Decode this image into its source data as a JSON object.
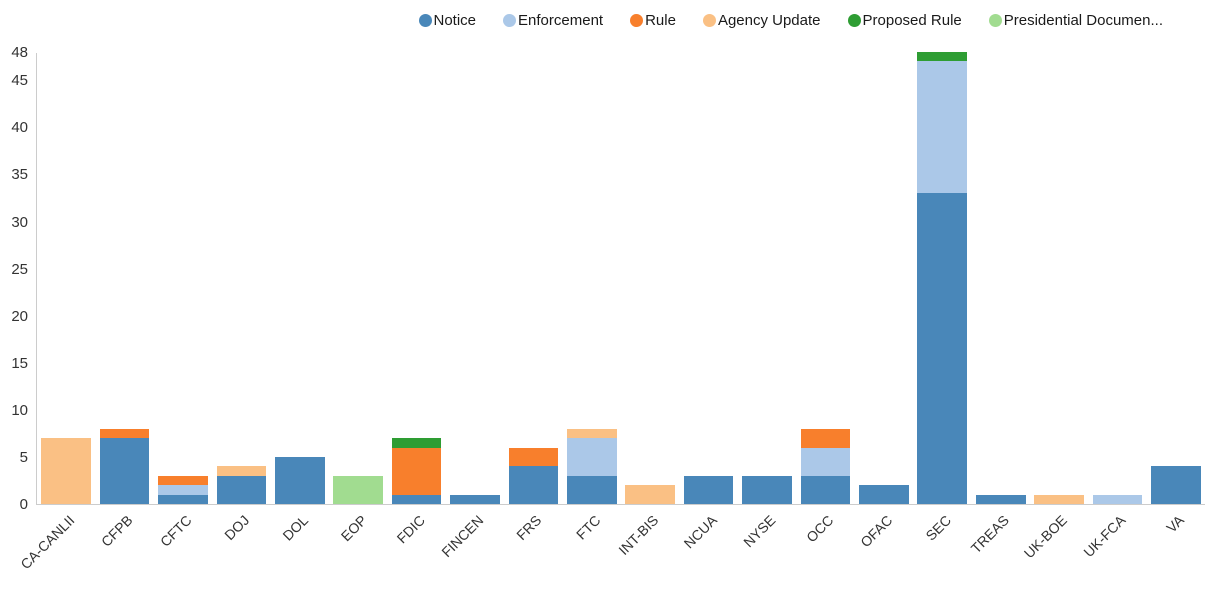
{
  "page": {
    "background": "#ffffff"
  },
  "chart_data": {
    "type": "bar",
    "stacked": true,
    "title": "",
    "xlabel": "",
    "ylabel": "",
    "ylim": [
      0,
      48
    ],
    "y_ticks": [
      0,
      5,
      10,
      15,
      20,
      25,
      30,
      35,
      40,
      45,
      48
    ],
    "grid": false,
    "legend_position": "top-right",
    "legend_labels": [
      "Notice",
      "Enforcement",
      "Rule",
      "Agency Update",
      "Proposed Rule",
      "Presidential Documen..."
    ],
    "categories": [
      "CA-CANLII",
      "CFPB",
      "CFTC",
      "DOJ",
      "DOL",
      "EOP",
      "FDIC",
      "FINCEN",
      "FRS",
      "FTC",
      "INT-BIS",
      "NCUA",
      "NYSE",
      "OCC",
      "OFAC",
      "SEC",
      "TREAS",
      "UK-BOE",
      "UK-FCA",
      "VA"
    ],
    "series": [
      {
        "name": "Notice",
        "color": "#4987b9",
        "values": [
          0,
          7,
          1,
          3,
          5,
          0,
          1,
          1,
          4,
          3,
          0,
          3,
          3,
          3,
          2,
          33,
          1,
          0,
          0,
          4
        ]
      },
      {
        "name": "Enforcement",
        "color": "#abc8e8",
        "values": [
          0,
          0,
          1,
          0,
          0,
          0,
          0,
          0,
          0,
          4,
          0,
          0,
          0,
          3,
          0,
          14,
          0,
          0,
          1,
          0
        ]
      },
      {
        "name": "Rule",
        "color": "#f87f2c",
        "values": [
          0,
          1,
          1,
          0,
          0,
          0,
          5,
          0,
          2,
          0,
          0,
          0,
          0,
          2,
          0,
          0,
          0,
          0,
          0,
          0
        ]
      },
      {
        "name": "Agency Update",
        "color": "#fac084",
        "values": [
          7,
          0,
          0,
          1,
          0,
          0,
          0,
          0,
          0,
          1,
          2,
          0,
          0,
          0,
          0,
          0,
          0,
          1,
          0,
          0
        ]
      },
      {
        "name": "Proposed Rule",
        "color": "#2e9d33",
        "values": [
          0,
          0,
          0,
          0,
          0,
          0,
          1,
          0,
          0,
          0,
          0,
          0,
          0,
          0,
          0,
          1,
          0,
          0,
          0,
          0
        ]
      },
      {
        "name": "Presidential Document",
        "color": "#a1dc90",
        "values": [
          0,
          0,
          0,
          0,
          0,
          3,
          0,
          0,
          0,
          0,
          0,
          0,
          0,
          0,
          0,
          0,
          0,
          0,
          0,
          0
        ]
      }
    ]
  }
}
